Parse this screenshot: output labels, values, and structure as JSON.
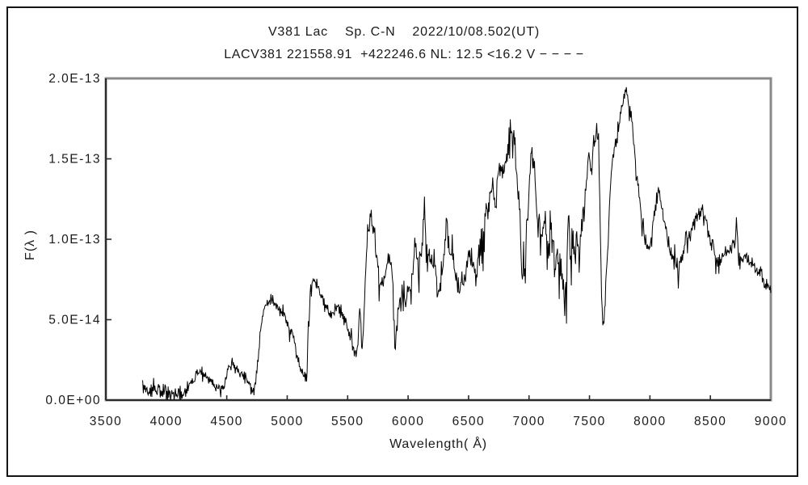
{
  "header": {
    "title_line1": "V381 Lac    Sp. C-N    2022/10/08.502(UT)",
    "title_line2": "LACV381 221558.91  +422246.6 NL: 12.5 <16.2 V − − − −"
  },
  "chart_data": {
    "type": "line",
    "title": "V381 Lac  Sp. C-N  2022/10/08.502(UT)",
    "subtitle": "LACV381 221558.91 +422246.6 NL: 12.5 <16.2 V (dashed)",
    "xlabel": "Wavelength( Å)",
    "ylabel": "F(λ )",
    "xlim": [
      3500,
      9000
    ],
    "ylim": [
      0,
      2e-13
    ],
    "grid": false,
    "legend_position": "none",
    "xticks": [
      3500,
      4000,
      4500,
      5000,
      5500,
      6000,
      6500,
      7000,
      7500,
      8000,
      8500,
      9000
    ],
    "yticks": [
      {
        "value": 0.0,
        "label": "0.0E+00"
      },
      {
        "value": 0.5,
        "label": "5.0E-14"
      },
      {
        "value": 1.0,
        "label": "1.0E-13"
      },
      {
        "value": 1.5,
        "label": "1.5E-13"
      },
      {
        "value": 2.0,
        "label": "2.0E-13"
      }
    ],
    "colors": {
      "line": "#000000",
      "box": "#8a8a8a",
      "axis": "#2b2b2b",
      "text": "#1a1a1a"
    },
    "series": [
      {
        "name": "spectrum",
        "flux_scale": "1e-13",
        "x_range": [
          3800,
          9000
        ],
        "sample_step_angstrom": 5,
        "anchors": [
          [
            3800,
            0.17
          ],
          [
            3808,
            0.07
          ],
          [
            3830,
            0.05
          ],
          [
            3860,
            0.06
          ],
          [
            3900,
            0.05
          ],
          [
            3940,
            0.06
          ],
          [
            3980,
            0.06
          ],
          [
            4020,
            0.06
          ],
          [
            4060,
            0.05
          ],
          [
            4100,
            0.04
          ],
          [
            4140,
            0.05
          ],
          [
            4180,
            0.08
          ],
          [
            4220,
            0.12
          ],
          [
            4260,
            0.17
          ],
          [
            4295,
            0.18
          ],
          [
            4330,
            0.15
          ],
          [
            4370,
            0.11
          ],
          [
            4410,
            0.08
          ],
          [
            4450,
            0.07
          ],
          [
            4480,
            0.1
          ],
          [
            4510,
            0.19
          ],
          [
            4545,
            0.24
          ],
          [
            4575,
            0.21
          ],
          [
            4610,
            0.17
          ],
          [
            4650,
            0.15
          ],
          [
            4685,
            0.12
          ],
          [
            4715,
            0.07
          ],
          [
            4735,
            0.1
          ],
          [
            4755,
            0.22
          ],
          [
            4775,
            0.4
          ],
          [
            4800,
            0.54
          ],
          [
            4830,
            0.6
          ],
          [
            4865,
            0.62
          ],
          [
            4900,
            0.58
          ],
          [
            4940,
            0.55
          ],
          [
            4980,
            0.52
          ],
          [
            5015,
            0.46
          ],
          [
            5045,
            0.41
          ],
          [
            5075,
            0.32
          ],
          [
            5105,
            0.21
          ],
          [
            5135,
            0.15
          ],
          [
            5160,
            0.14
          ],
          [
            5175,
            0.45
          ],
          [
            5195,
            0.68
          ],
          [
            5218,
            0.78
          ],
          [
            5245,
            0.72
          ],
          [
            5275,
            0.67
          ],
          [
            5305,
            0.62
          ],
          [
            5335,
            0.57
          ],
          [
            5360,
            0.51
          ],
          [
            5390,
            0.56
          ],
          [
            5420,
            0.58
          ],
          [
            5450,
            0.53
          ],
          [
            5480,
            0.49
          ],
          [
            5510,
            0.43
          ],
          [
            5540,
            0.35
          ],
          [
            5565,
            0.28
          ],
          [
            5585,
            0.34
          ],
          [
            5598,
            0.62
          ],
          [
            5606,
            0.44
          ],
          [
            5618,
            0.32
          ],
          [
            5632,
            0.5
          ],
          [
            5648,
            0.82
          ],
          [
            5662,
            1.02
          ],
          [
            5678,
            1.1
          ],
          [
            5692,
            1.14
          ],
          [
            5706,
            1.04
          ],
          [
            5720,
            1.07
          ],
          [
            5736,
            0.9
          ],
          [
            5752,
            0.82
          ],
          [
            5772,
            0.77
          ],
          [
            5792,
            0.71
          ],
          [
            5812,
            0.81
          ],
          [
            5832,
            0.86
          ],
          [
            5852,
            0.88
          ],
          [
            5868,
            0.8
          ],
          [
            5882,
            0.52
          ],
          [
            5893,
            0.32
          ],
          [
            5906,
            0.46
          ],
          [
            5922,
            0.58
          ],
          [
            5942,
            0.62
          ],
          [
            5962,
            0.59
          ],
          [
            5982,
            0.63
          ],
          [
            6002,
            0.66
          ],
          [
            6022,
            0.7
          ],
          [
            6042,
            0.84
          ],
          [
            6056,
            0.96
          ],
          [
            6072,
            0.89
          ],
          [
            6088,
            0.86
          ],
          [
            6104,
            0.88
          ],
          [
            6120,
            0.96
          ],
          [
            6136,
            1.25
          ],
          [
            6146,
            0.95
          ],
          [
            6162,
            0.85
          ],
          [
            6180,
            0.91
          ],
          [
            6200,
            0.85
          ],
          [
            6220,
            0.89
          ],
          [
            6240,
            0.72
          ],
          [
            6256,
            0.61
          ],
          [
            6272,
            0.77
          ],
          [
            6292,
            0.86
          ],
          [
            6308,
            1.02
          ],
          [
            6320,
            1.12
          ],
          [
            6336,
            0.94
          ],
          [
            6352,
            0.87
          ],
          [
            6368,
            0.91
          ],
          [
            6386,
            0.81
          ],
          [
            6404,
            0.74
          ],
          [
            6422,
            0.67
          ],
          [
            6438,
            0.79
          ],
          [
            6454,
            0.71
          ],
          [
            6470,
            0.72
          ],
          [
            6486,
            0.86
          ],
          [
            6504,
            0.91
          ],
          [
            6522,
            0.87
          ],
          [
            6540,
            0.84
          ],
          [
            6558,
            0.72
          ],
          [
            6576,
            0.84
          ],
          [
            6594,
            0.94
          ],
          [
            6612,
            1.02
          ],
          [
            6632,
            1.1
          ],
          [
            6652,
            1.21
          ],
          [
            6668,
            1.17
          ],
          [
            6684,
            1.29
          ],
          [
            6698,
            1.36
          ],
          [
            6714,
            1.24
          ],
          [
            6730,
            1.28
          ],
          [
            6746,
            1.39
          ],
          [
            6762,
            1.47
          ],
          [
            6778,
            1.38
          ],
          [
            6794,
            1.42
          ],
          [
            6812,
            1.5
          ],
          [
            6830,
            1.61
          ],
          [
            6846,
            1.69
          ],
          [
            6862,
            1.65
          ],
          [
            6876,
            1.7
          ],
          [
            6892,
            1.49
          ],
          [
            6908,
            1.29
          ],
          [
            6924,
            1.14
          ],
          [
            6938,
            0.86
          ],
          [
            6948,
            0.72
          ],
          [
            6958,
            1.02
          ],
          [
            6968,
            0.7
          ],
          [
            6980,
            1.08
          ],
          [
            6996,
            1.28
          ],
          [
            7012,
            1.52
          ],
          [
            7026,
            1.56
          ],
          [
            7042,
            1.34
          ],
          [
            7062,
            1.19
          ],
          [
            7082,
            1.11
          ],
          [
            7102,
            1.04
          ],
          [
            7122,
            1.14
          ],
          [
            7142,
            1.09
          ],
          [
            7162,
            0.94
          ],
          [
            7182,
            1.04
          ],
          [
            7202,
            0.94
          ],
          [
            7216,
            0.78
          ],
          [
            7232,
            0.89
          ],
          [
            7252,
            0.84
          ],
          [
            7272,
            0.77
          ],
          [
            7292,
            0.71
          ],
          [
            7310,
            0.69
          ],
          [
            7324,
            1.28
          ],
          [
            7338,
            0.93
          ],
          [
            7358,
            0.99
          ],
          [
            7378,
            0.94
          ],
          [
            7398,
            1.04
          ],
          [
            7418,
            0.91
          ],
          [
            7438,
            1.09
          ],
          [
            7458,
            1.24
          ],
          [
            7478,
            1.43
          ],
          [
            7498,
            1.53
          ],
          [
            7514,
            1.44
          ],
          [
            7530,
            1.56
          ],
          [
            7546,
            1.63
          ],
          [
            7560,
            1.7
          ],
          [
            7576,
            1.58
          ],
          [
            7590,
            1.05
          ],
          [
            7602,
            0.58
          ],
          [
            7614,
            0.45
          ],
          [
            7626,
            0.56
          ],
          [
            7640,
            0.8
          ],
          [
            7654,
            0.95
          ],
          [
            7668,
            1.28
          ],
          [
            7684,
            1.46
          ],
          [
            7700,
            1.54
          ],
          [
            7716,
            1.59
          ],
          [
            7732,
            1.64
          ],
          [
            7748,
            1.71
          ],
          [
            7762,
            1.79
          ],
          [
            7776,
            1.85
          ],
          [
            7790,
            1.91
          ],
          [
            7802,
            1.92
          ],
          [
            7814,
            1.87
          ],
          [
            7828,
            1.81
          ],
          [
            7842,
            1.79
          ],
          [
            7856,
            1.71
          ],
          [
            7870,
            1.59
          ],
          [
            7884,
            1.44
          ],
          [
            7898,
            1.37
          ],
          [
            7912,
            1.27
          ],
          [
            7928,
            1.14
          ],
          [
            7944,
            1.07
          ],
          [
            7960,
            1.0
          ],
          [
            7976,
            0.96
          ],
          [
            7992,
            0.95
          ],
          [
            8008,
            1.0
          ],
          [
            8024,
            1.1
          ],
          [
            8040,
            1.17
          ],
          [
            8056,
            1.24
          ],
          [
            8072,
            1.31
          ],
          [
            8088,
            1.24
          ],
          [
            8104,
            1.19
          ],
          [
            8120,
            1.11
          ],
          [
            8136,
            1.05
          ],
          [
            8156,
            0.97
          ],
          [
            8176,
            0.91
          ],
          [
            8196,
            0.87
          ],
          [
            8216,
            0.85
          ],
          [
            8236,
            0.81
          ],
          [
            8256,
            0.88
          ],
          [
            8276,
            0.94
          ],
          [
            8296,
            0.99
          ],
          [
            8316,
            1.02
          ],
          [
            8336,
            1.04
          ],
          [
            8356,
            1.07
          ],
          [
            8376,
            1.11
          ],
          [
            8396,
            1.14
          ],
          [
            8416,
            1.17
          ],
          [
            8436,
            1.2
          ],
          [
            8452,
            1.17
          ],
          [
            8468,
            1.11
          ],
          [
            8488,
            1.04
          ],
          [
            8508,
            0.97
          ],
          [
            8528,
            0.94
          ],
          [
            8548,
            0.87
          ],
          [
            8568,
            0.85
          ],
          [
            8588,
            0.89
          ],
          [
            8608,
            0.91
          ],
          [
            8628,
            0.94
          ],
          [
            8648,
            0.91
          ],
          [
            8668,
            0.94
          ],
          [
            8688,
            0.97
          ],
          [
            8704,
            0.94
          ],
          [
            8716,
            1.12
          ],
          [
            8728,
            0.94
          ],
          [
            8748,
            0.91
          ],
          [
            8768,
            0.89
          ],
          [
            8788,
            0.91
          ],
          [
            8808,
            0.87
          ],
          [
            8828,
            0.84
          ],
          [
            8848,
            0.85
          ],
          [
            8868,
            0.82
          ],
          [
            8888,
            0.79
          ],
          [
            8908,
            0.81
          ],
          [
            8928,
            0.77
          ],
          [
            8948,
            0.74
          ],
          [
            8968,
            0.71
          ],
          [
            8984,
            0.69
          ],
          [
            9000,
            0.66
          ]
        ],
        "noise_regions": [
          [
            3800,
            4180,
            0.035
          ],
          [
            4180,
            4740,
            0.022
          ],
          [
            4740,
            5160,
            0.022
          ],
          [
            5160,
            5560,
            0.03
          ],
          [
            5560,
            6100,
            0.05
          ],
          [
            6100,
            6600,
            0.06
          ],
          [
            6600,
            7590,
            0.065
          ],
          [
            7590,
            7700,
            0.035
          ],
          [
            7700,
            7960,
            0.028
          ],
          [
            7960,
            8320,
            0.04
          ],
          [
            8320,
            9000,
            0.032
          ]
        ]
      }
    ]
  }
}
